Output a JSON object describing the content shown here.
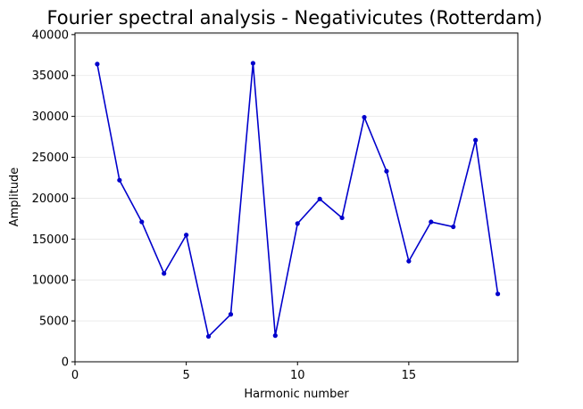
{
  "chart_data": {
    "type": "line",
    "title": "Fourier spectral analysis - Negativicutes (Rotterdam)",
    "xlabel": "Harmonic number",
    "ylabel": "Amplitude",
    "xlim": [
      0,
      19.9
    ],
    "ylim": [
      0,
      40200
    ],
    "xticks": [
      0,
      5,
      10,
      15
    ],
    "yticks": [
      0,
      5000,
      10000,
      15000,
      20000,
      25000,
      30000,
      35000,
      40000
    ],
    "grid": "horizontal",
    "color": "#0000cc",
    "series": [
      {
        "x": [
          1,
          2,
          3,
          4,
          5,
          6,
          7,
          8,
          9,
          10,
          11,
          12,
          13,
          14,
          15,
          16,
          17,
          18,
          19
        ],
        "values": [
          36400,
          22200,
          17100,
          10800,
          15500,
          3100,
          5800,
          36500,
          3200,
          16900,
          19900,
          17600,
          29900,
          23300,
          12300,
          17100,
          16500,
          27100,
          8300
        ]
      }
    ]
  }
}
